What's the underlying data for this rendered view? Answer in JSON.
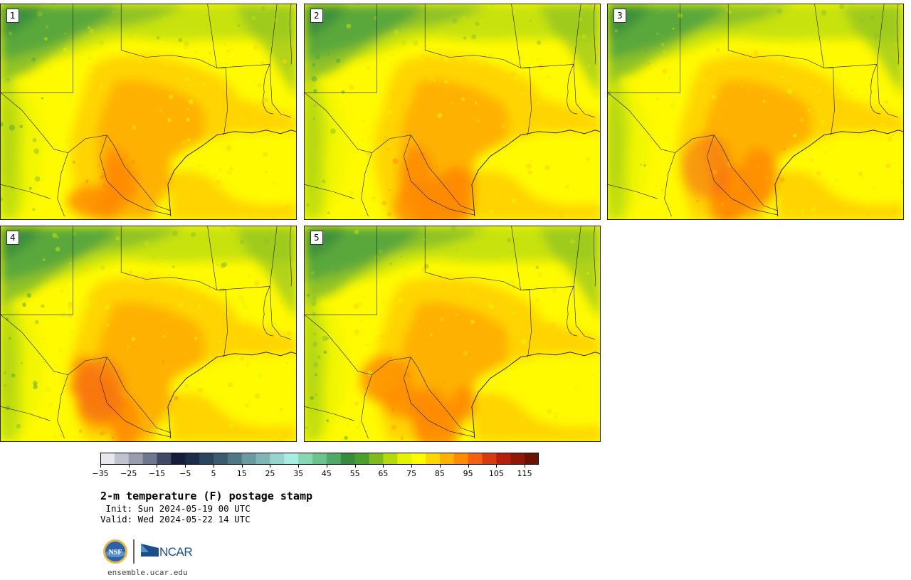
{
  "panels": [
    {
      "label": "1",
      "variant": 1
    },
    {
      "label": "2",
      "variant": 2
    },
    {
      "label": "3",
      "variant": 3
    },
    {
      "label": "4",
      "variant": 4
    },
    {
      "label": "5",
      "variant": 5
    }
  ],
  "colorbar": {
    "colors": [
      "#e6e8ed",
      "#c0c3cd",
      "#999eae",
      "#6f7690",
      "#3f4866",
      "#141e3a",
      "#1d2c4c",
      "#2a4560",
      "#3a5b70",
      "#4f7885",
      "#6a9ba3",
      "#80b4b5",
      "#98d4ce",
      "#a9ece2",
      "#88d7b4",
      "#6bc38e",
      "#4fa967",
      "#368b3c",
      "#4b9f2c",
      "#7fbb1d",
      "#b5d90a",
      "#e6f200",
      "#fffb00",
      "#ffd700",
      "#ffb100",
      "#ff8c00",
      "#f26010",
      "#d8390f",
      "#b61f0e",
      "#901809",
      "#6a1305"
    ],
    "ticks": [
      "−35",
      "−25",
      "−15",
      "−5",
      "5",
      "15",
      "25",
      "35",
      "45",
      "55",
      "65",
      "75",
      "85",
      "95",
      "105",
      "115"
    ]
  },
  "title": "2-m temperature (F) postage stamp",
  "init": " Init: Sun 2024-05-19 00 UTC",
  "valid": "Valid: Wed 2024-05-22 14 UTC",
  "logos": {
    "nsf": "NSF",
    "ncar": "NCAR"
  },
  "footer": "ensemble.ucar.edu"
}
